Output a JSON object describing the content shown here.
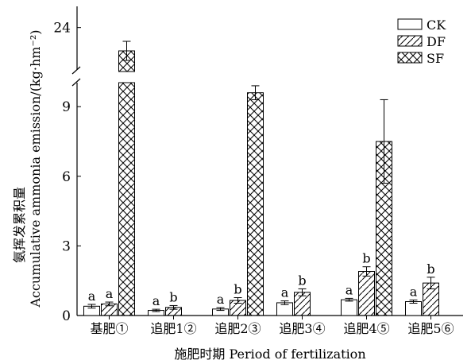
{
  "chart_data": {
    "type": "bar",
    "xlabel": "施肥时期 Period of fertilization",
    "ylabel": "氨挥发累积量",
    "ylabel_en": "Accumulative ammonia emission/(kg·hm⁻²)",
    "y_axis_break": true,
    "lower_ylim": [
      0,
      10
    ],
    "upper_ylim": [
      22,
      25
    ],
    "yticks": [
      0,
      3,
      6,
      9,
      24
    ],
    "ytick_labels": [
      "0",
      "3",
      "6",
      "9",
      "24"
    ],
    "categories": [
      "基肥①",
      "追肥1②",
      "追肥2③",
      "追肥3④",
      "追肥4⑤",
      "追肥5⑥"
    ],
    "series": [
      {
        "name": "CK",
        "pattern": "none",
        "values": [
          0.4,
          0.22,
          0.28,
          0.55,
          0.68,
          0.6
        ],
        "errors": [
          0.08,
          0.05,
          0.06,
          0.08,
          0.06,
          0.07
        ],
        "labels": [
          "a",
          "a",
          "a",
          "a",
          "a",
          "a"
        ]
      },
      {
        "name": "DF",
        "pattern": "diagonal",
        "values": [
          0.5,
          0.35,
          0.65,
          1.0,
          1.9,
          1.4
        ],
        "errors": [
          0.08,
          0.08,
          0.12,
          0.15,
          0.2,
          0.25
        ],
        "labels": [
          "a",
          "b",
          "b",
          "b",
          "b",
          "b"
        ]
      },
      {
        "name": "SF",
        "pattern": "crosshatch",
        "values": [
          22.9,
          null,
          9.6,
          null,
          7.5,
          null
        ],
        "errors": [
          0.45,
          null,
          0.3,
          null,
          1.8,
          null
        ],
        "labels": [
          "",
          "",
          "",
          "",
          "",
          ""
        ]
      }
    ],
    "legend": "top-right",
    "grid": false
  }
}
